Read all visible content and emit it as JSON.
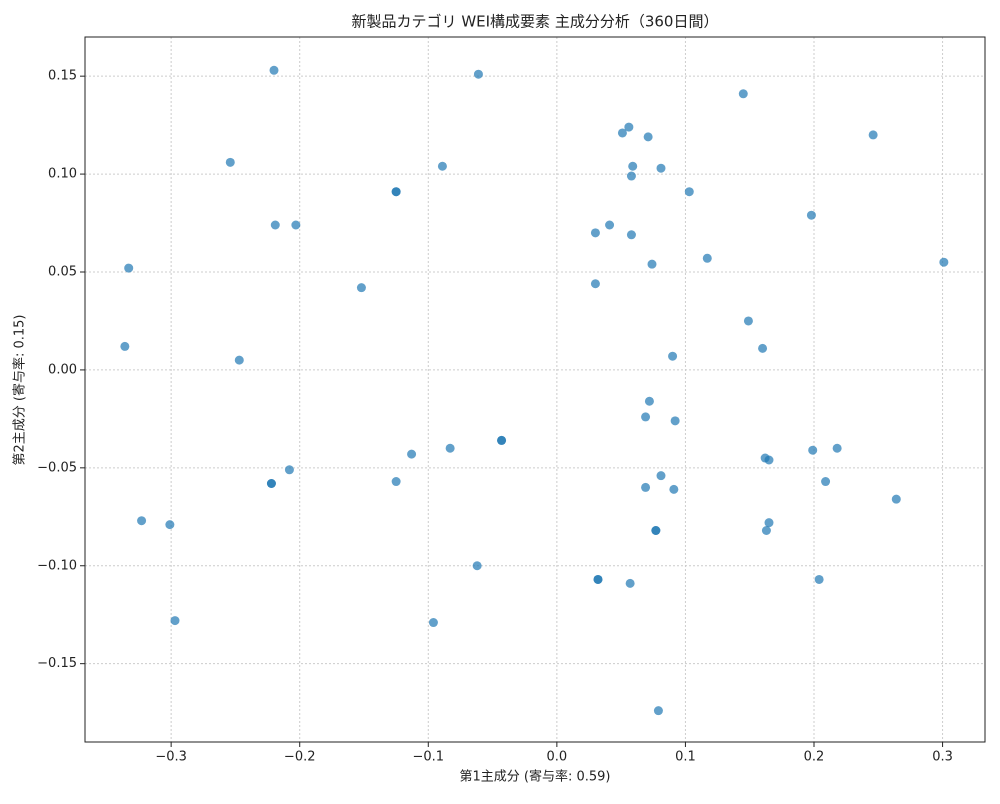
{
  "chart_data": {
    "type": "scatter",
    "title": "新製品カテゴリ WEI構成要素 主成分分析（360日間）",
    "x_label": "第1主成分 (寄与率: 0.59)",
    "y_label": "第2主成分 (寄与率: 0.15)",
    "color": "#1f77b4",
    "grid": true,
    "xlim": [
      -0.367,
      0.333
    ],
    "ylim": [
      -0.19,
      0.17
    ],
    "xticks": [
      {
        "value": -0.3,
        "label": "−0.3"
      },
      {
        "value": -0.2,
        "label": "−0.2"
      },
      {
        "value": -0.1,
        "label": "−0.1"
      },
      {
        "value": 0,
        "label": "0.0"
      },
      0.1,
      0.2,
      0.3
    ],
    "yticks": [
      {
        "value": -0.15,
        "label": "−0.15"
      },
      {
        "value": -0.1,
        "label": "−0.10"
      },
      {
        "value": -0.05,
        "label": "−0.05"
      },
      {
        "value": 0,
        "label": "0.00"
      },
      0.05,
      {
        "value": 0.1,
        "label": "0.10"
      },
      0.15
    ],
    "x": [
      -0.22,
      -0.061,
      0.145,
      -0.254,
      0.246,
      0.056,
      0.051,
      0.071,
      -0.089,
      -0.125,
      -0.125,
      0.059,
      0.081,
      0.058,
      0.103,
      0.198,
      -0.219,
      -0.203,
      0.041,
      0.03,
      0.058,
      0.074,
      0.117,
      -0.333,
      0.301,
      -0.152,
      0.03,
      0.149,
      -0.336,
      0.16,
      -0.247,
      0.09,
      0.072,
      0.069,
      0.092,
      -0.043,
      -0.043,
      -0.083,
      0.199,
      0.218,
      -0.113,
      0.162,
      0.165,
      -0.208,
      -0.222,
      -0.222,
      0.081,
      -0.125,
      0.209,
      0.069,
      0.091,
      0.264,
      -0.323,
      -0.301,
      0.165,
      0.077,
      0.077,
      0.163,
      -0.062,
      0.032,
      0.032,
      0.057,
      0.204,
      -0.297,
      -0.096,
      0.079
    ],
    "values": [
      0.153,
      0.151,
      0.141,
      0.106,
      0.12,
      0.124,
      0.121,
      0.119,
      0.104,
      0.091,
      0.091,
      0.104,
      0.103,
      0.099,
      0.091,
      0.079,
      0.074,
      0.074,
      0.074,
      0.07,
      0.069,
      0.054,
      0.057,
      0.052,
      0.055,
      0.042,
      0.044,
      0.025,
      0.012,
      0.011,
      0.005,
      0.007,
      -0.016,
      -0.024,
      -0.026,
      -0.036,
      -0.036,
      -0.04,
      -0.041,
      -0.04,
      -0.043,
      -0.045,
      -0.046,
      -0.051,
      -0.058,
      -0.058,
      -0.054,
      -0.057,
      -0.057,
      -0.06,
      -0.061,
      -0.066,
      -0.077,
      -0.079,
      -0.078,
      -0.082,
      -0.082,
      -0.082,
      -0.1,
      -0.107,
      -0.107,
      -0.109,
      -0.107,
      -0.128,
      -0.129,
      -0.174
    ]
  }
}
